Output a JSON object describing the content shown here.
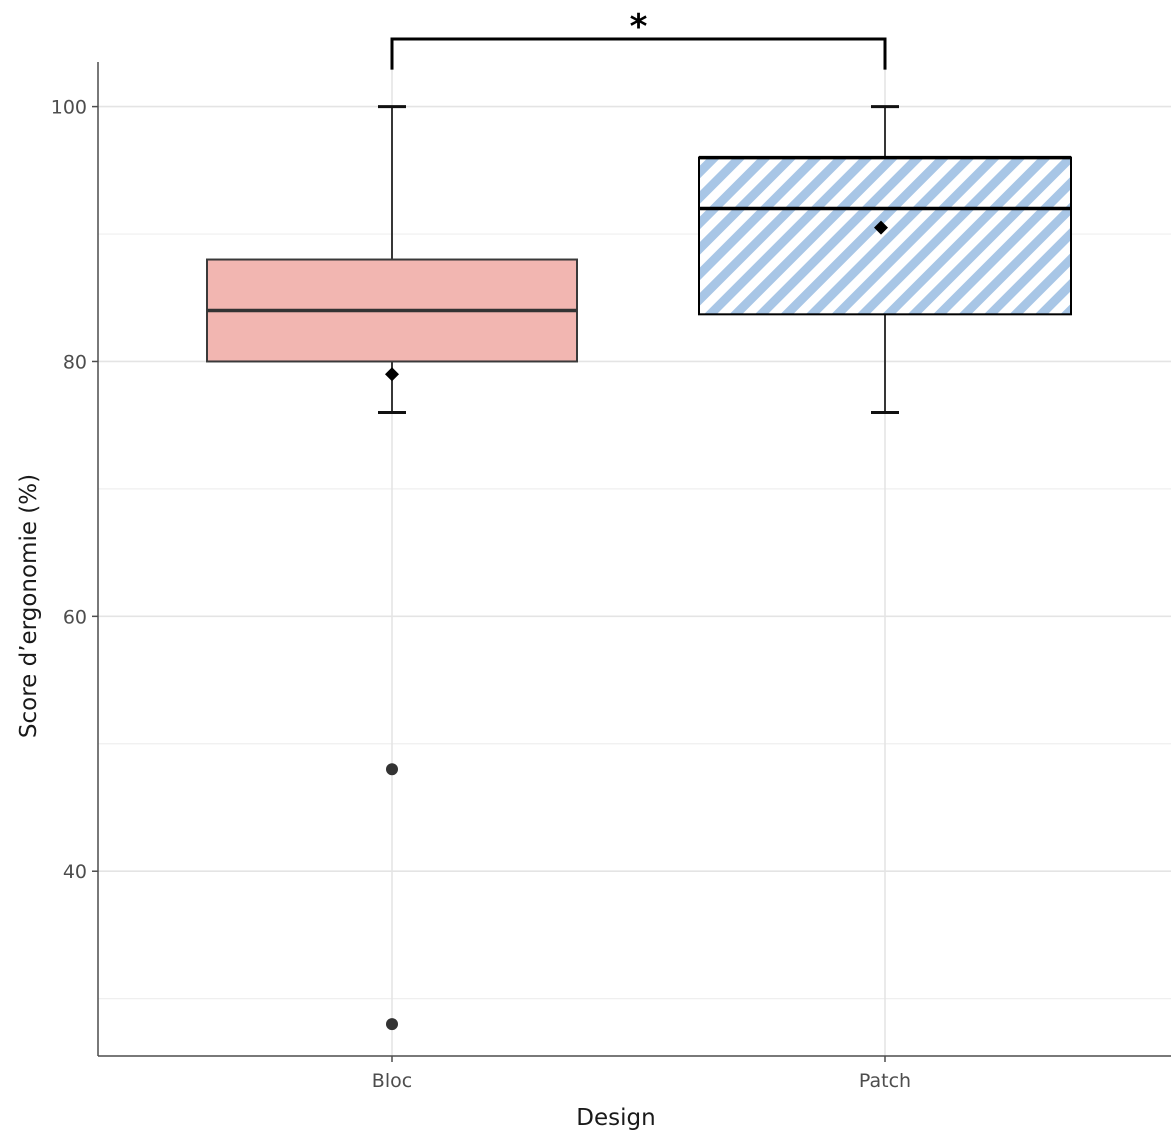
{
  "chart_data": {
    "type": "boxplot",
    "xlabel": "Design",
    "ylabel": "Score d’ergonomie (%)",
    "categories": [
      "Bloc",
      "Patch"
    ],
    "ylim": [
      25.5,
      103.5
    ],
    "y_ticks": [
      40,
      60,
      80,
      100
    ],
    "y_minor_ticks": [
      30,
      50,
      70,
      90
    ],
    "grid": true,
    "boxes": [
      {
        "category": "Bloc",
        "whisker_low": 76,
        "q1": 80,
        "median": 84,
        "q3": 88,
        "whisker_high": 100,
        "mean": 79,
        "outliers": [
          48,
          28
        ],
        "fill": "#f2b6b1",
        "pattern": "solid"
      },
      {
        "category": "Patch",
        "whisker_low": 76,
        "q1": 83.7,
        "median": 92,
        "q3": 96,
        "whisker_high": 100,
        "mean": 90.5,
        "outliers": [],
        "fill": "#a8c6e6",
        "pattern": "diagonal-stripes"
      }
    ],
    "significance": {
      "groups": [
        "Bloc",
        "Patch"
      ],
      "label": "*"
    }
  }
}
